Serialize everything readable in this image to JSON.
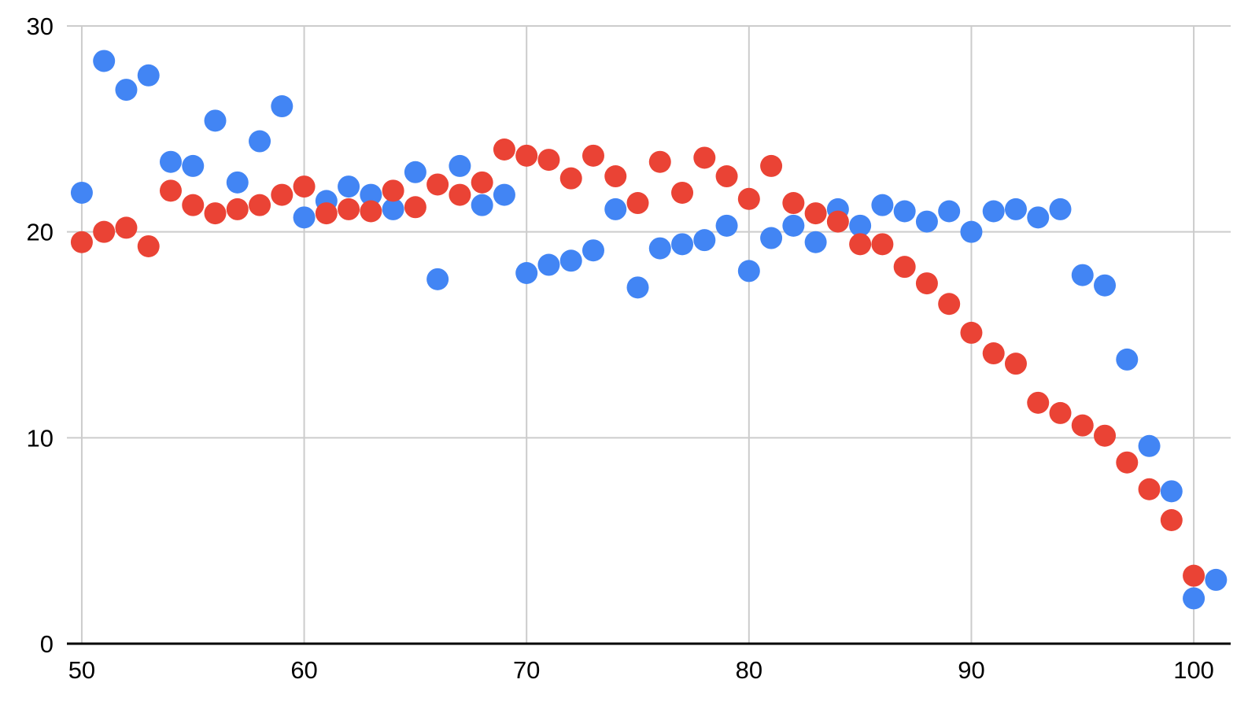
{
  "chart_data": {
    "type": "scatter",
    "title": "",
    "xlabel": "",
    "ylabel": "",
    "legend": "none",
    "grid": true,
    "xlim": [
      49.33,
      101.66
    ],
    "ylim": [
      0,
      30
    ],
    "x_ticks": [
      50,
      60,
      70,
      80,
      90,
      100
    ],
    "y_ticks": [
      0,
      10,
      20,
      30
    ],
    "gridline_color": "#cccccc",
    "axis_color": "#000000",
    "tick_label_color": "#000000",
    "marker_radius": 14,
    "series": [
      {
        "name": "series-blue",
        "color": "#4285F4",
        "points": [
          [
            50,
            21.9
          ],
          [
            51,
            28.3
          ],
          [
            52,
            26.9
          ],
          [
            53,
            27.6
          ],
          [
            54,
            23.4
          ],
          [
            55,
            23.2
          ],
          [
            56,
            25.4
          ],
          [
            57,
            22.4
          ],
          [
            58,
            24.4
          ],
          [
            59,
            26.1
          ],
          [
            60,
            20.7
          ],
          [
            61,
            21.5
          ],
          [
            62,
            22.2
          ],
          [
            63,
            21.8
          ],
          [
            64,
            21.1
          ],
          [
            65,
            22.9
          ],
          [
            66,
            17.7
          ],
          [
            67,
            23.2
          ],
          [
            68,
            21.3
          ],
          [
            69,
            21.8
          ],
          [
            70,
            18.0
          ],
          [
            71,
            18.4
          ],
          [
            72,
            18.6
          ],
          [
            73,
            19.1
          ],
          [
            74,
            21.1
          ],
          [
            75,
            17.3
          ],
          [
            76,
            19.2
          ],
          [
            77,
            19.4
          ],
          [
            78,
            19.6
          ],
          [
            79,
            20.3
          ],
          [
            80,
            18.1
          ],
          [
            81,
            19.7
          ],
          [
            82,
            20.3
          ],
          [
            83,
            19.5
          ],
          [
            84,
            21.1
          ],
          [
            85,
            20.3
          ],
          [
            86,
            21.3
          ],
          [
            87,
            21.0
          ],
          [
            88,
            20.5
          ],
          [
            89,
            21.0
          ],
          [
            90,
            20.0
          ],
          [
            91,
            21.0
          ],
          [
            92,
            21.1
          ],
          [
            93,
            20.7
          ],
          [
            94,
            21.1
          ],
          [
            95,
            17.9
          ],
          [
            96,
            17.4
          ],
          [
            97,
            13.8
          ],
          [
            98,
            9.6
          ],
          [
            99,
            7.4
          ],
          [
            100,
            2.2
          ],
          [
            101,
            3.1
          ]
        ]
      },
      {
        "name": "series-red",
        "color": "#EA4335",
        "points": [
          [
            50,
            19.5
          ],
          [
            51,
            20.0
          ],
          [
            52,
            20.2
          ],
          [
            53,
            19.3
          ],
          [
            54,
            22.0
          ],
          [
            55,
            21.3
          ],
          [
            56,
            20.9
          ],
          [
            57,
            21.1
          ],
          [
            58,
            21.3
          ],
          [
            59,
            21.8
          ],
          [
            60,
            22.2
          ],
          [
            61,
            20.9
          ],
          [
            62,
            21.1
          ],
          [
            63,
            21.0
          ],
          [
            64,
            22.0
          ],
          [
            65,
            21.2
          ],
          [
            66,
            22.3
          ],
          [
            67,
            21.8
          ],
          [
            68,
            22.4
          ],
          [
            69,
            24.0
          ],
          [
            70,
            23.7
          ],
          [
            71,
            23.5
          ],
          [
            72,
            22.6
          ],
          [
            73,
            23.7
          ],
          [
            74,
            22.7
          ],
          [
            75,
            21.4
          ],
          [
            76,
            23.4
          ],
          [
            77,
            21.9
          ],
          [
            78,
            23.6
          ],
          [
            79,
            22.7
          ],
          [
            80,
            21.6
          ],
          [
            81,
            23.2
          ],
          [
            82,
            21.4
          ],
          [
            83,
            20.9
          ],
          [
            84,
            20.5
          ],
          [
            85,
            19.4
          ],
          [
            86,
            19.4
          ],
          [
            87,
            18.3
          ],
          [
            88,
            17.5
          ],
          [
            89,
            16.5
          ],
          [
            90,
            15.1
          ],
          [
            91,
            14.1
          ],
          [
            92,
            13.6
          ],
          [
            93,
            11.7
          ],
          [
            94,
            11.2
          ],
          [
            95,
            10.6
          ],
          [
            96,
            10.1
          ],
          [
            97,
            8.8
          ],
          [
            98,
            7.5
          ],
          [
            99,
            6.0
          ],
          [
            100,
            3.3
          ]
        ]
      }
    ]
  }
}
